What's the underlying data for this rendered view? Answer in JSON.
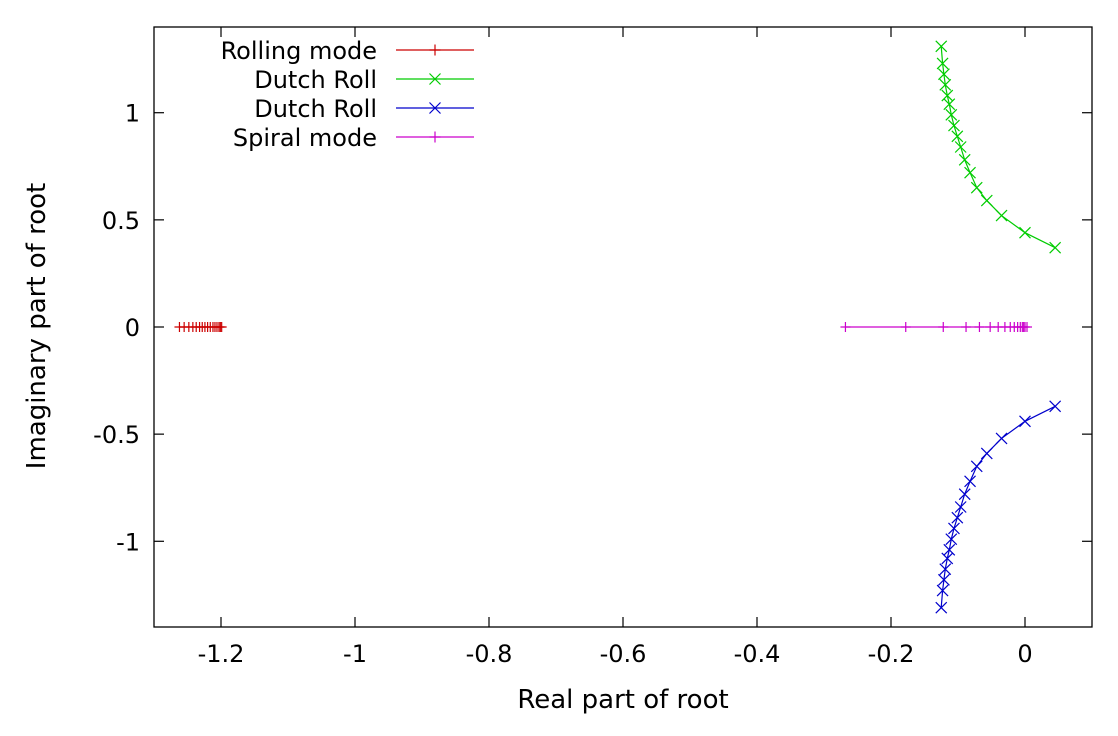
{
  "chart_data": {
    "type": "scatter",
    "xlabel": "Real part of root",
    "ylabel": "Imaginary part of root",
    "xlim": [
      -1.3,
      0.1
    ],
    "ylim": [
      -1.4,
      1.4
    ],
    "x_ticks": [
      -1.2,
      -1,
      -0.8,
      -0.6,
      -0.4,
      -0.2,
      0
    ],
    "x_tick_labels": [
      "-1.2",
      "-1",
      "-0.8",
      "-0.6",
      "-0.4",
      "-0.2",
      "0"
    ],
    "y_ticks": [
      1,
      0.5,
      0,
      -0.5,
      -1
    ],
    "y_tick_labels": [
      "1",
      "0.5",
      "0",
      "-0.5",
      "-1"
    ],
    "grid": false,
    "legend_position": "top-left",
    "series": [
      {
        "name": "Rolling mode",
        "color": "#cc0000",
        "marker": "plus",
        "x": [
          -1.262,
          -1.255,
          -1.248,
          -1.242,
          -1.237,
          -1.232,
          -1.228,
          -1.224,
          -1.22,
          -1.216,
          -1.212,
          -1.209,
          -1.206,
          -1.203,
          -1.201,
          -1.199
        ],
        "y": [
          0,
          0,
          0,
          0,
          0,
          0,
          0,
          0,
          0,
          0,
          0,
          0,
          0,
          0,
          0,
          0
        ]
      },
      {
        "name": "Dutch Roll",
        "color": "#00cc00",
        "marker": "x",
        "x": [
          0.045,
          0.0,
          -0.035,
          -0.057,
          -0.072,
          -0.082,
          -0.09,
          -0.096,
          -0.101,
          -0.106,
          -0.11,
          -0.113,
          -0.116,
          -0.119,
          -0.121,
          -0.123,
          -0.125
        ],
        "y": [
          0.37,
          0.44,
          0.52,
          0.59,
          0.65,
          0.72,
          0.78,
          0.84,
          0.89,
          0.94,
          0.99,
          1.04,
          1.08,
          1.13,
          1.18,
          1.23,
          1.31
        ]
      },
      {
        "name": "Dutch Roll",
        "color": "#0000cc",
        "marker": "x",
        "x": [
          0.045,
          0.0,
          -0.035,
          -0.057,
          -0.072,
          -0.082,
          -0.09,
          -0.096,
          -0.101,
          -0.106,
          -0.11,
          -0.113,
          -0.116,
          -0.119,
          -0.121,
          -0.123,
          -0.125
        ],
        "y": [
          -0.37,
          -0.44,
          -0.52,
          -0.59,
          -0.65,
          -0.72,
          -0.78,
          -0.84,
          -0.89,
          -0.94,
          -0.99,
          -1.04,
          -1.08,
          -1.13,
          -1.18,
          -1.23,
          -1.31
        ]
      },
      {
        "name": "Spiral mode",
        "color": "#cc00cc",
        "marker": "plus",
        "x": [
          -0.268,
          -0.178,
          -0.122,
          -0.088,
          -0.068,
          -0.052,
          -0.04,
          -0.03,
          -0.022,
          -0.016,
          -0.011,
          -0.007,
          -0.004,
          -0.002,
          0.0,
          0.003
        ],
        "y": [
          0,
          0,
          0,
          0,
          0,
          0,
          0,
          0,
          0,
          0,
          0,
          0,
          0,
          0,
          0,
          0
        ]
      }
    ]
  }
}
